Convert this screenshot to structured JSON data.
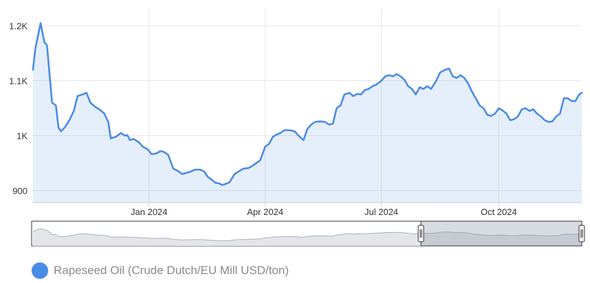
{
  "chart_data": {
    "type": "area",
    "title": "",
    "xlabel": "",
    "ylabel": "",
    "series": [
      {
        "name": "Rapeseed Oil (Crude Dutch/EU Mill USD/ton)",
        "color": "#4a8be6",
        "points": [
          [
            "2023-10-02",
            1120
          ],
          [
            "2023-10-04",
            1160
          ],
          [
            "2023-10-08",
            1205
          ],
          [
            "2023-10-11",
            1170
          ],
          [
            "2023-10-13",
            1165
          ],
          [
            "2023-10-17",
            1060
          ],
          [
            "2023-10-20",
            1055
          ],
          [
            "2023-10-22",
            1015
          ],
          [
            "2023-10-24",
            1008
          ],
          [
            "2023-10-27",
            1015
          ],
          [
            "2023-10-31",
            1030
          ],
          [
            "2023-11-03",
            1045
          ],
          [
            "2023-11-06",
            1072
          ],
          [
            "2023-11-10",
            1075
          ],
          [
            "2023-11-13",
            1078
          ],
          [
            "2023-11-16",
            1060
          ],
          [
            "2023-11-20",
            1052
          ],
          [
            "2023-11-23",
            1048
          ],
          [
            "2023-11-27",
            1040
          ],
          [
            "2023-11-30",
            1025
          ],
          [
            "2023-12-02",
            995
          ],
          [
            "2023-12-06",
            998
          ],
          [
            "2023-12-10",
            1005
          ],
          [
            "2023-12-13",
            1000
          ],
          [
            "2023-12-15",
            1001
          ],
          [
            "2023-12-17",
            992
          ],
          [
            "2023-12-20",
            994
          ],
          [
            "2023-12-24",
            988
          ],
          [
            "2023-12-27",
            980
          ],
          [
            "2023-12-31",
            975
          ],
          [
            "2024-01-03",
            966
          ],
          [
            "2024-01-07",
            968
          ],
          [
            "2024-01-10",
            972
          ],
          [
            "2024-01-13",
            970
          ],
          [
            "2024-01-16",
            965
          ],
          [
            "2024-01-20",
            940
          ],
          [
            "2024-01-24",
            935
          ],
          [
            "2024-01-27",
            930
          ],
          [
            "2024-01-30",
            932
          ],
          [
            "2024-02-02",
            934
          ],
          [
            "2024-02-06",
            938
          ],
          [
            "2024-02-10",
            938
          ],
          [
            "2024-02-13",
            935
          ],
          [
            "2024-02-16",
            925
          ],
          [
            "2024-02-19",
            920
          ],
          [
            "2024-02-22",
            914
          ],
          [
            "2024-02-25",
            913
          ],
          [
            "2024-02-27",
            910
          ],
          [
            "2024-03-01",
            912
          ],
          [
            "2024-03-04",
            915
          ],
          [
            "2024-03-08",
            930
          ],
          [
            "2024-03-12",
            936
          ],
          [
            "2024-03-15",
            940
          ],
          [
            "2024-03-19",
            941
          ],
          [
            "2024-03-22",
            945
          ],
          [
            "2024-03-25",
            950
          ],
          [
            "2024-03-28",
            955
          ],
          [
            "2024-04-01",
            980
          ],
          [
            "2024-04-04",
            985
          ],
          [
            "2024-04-07",
            998
          ],
          [
            "2024-04-10",
            1002
          ],
          [
            "2024-04-13",
            1005
          ],
          [
            "2024-04-16",
            1010
          ],
          [
            "2024-04-20",
            1010
          ],
          [
            "2024-04-24",
            1008
          ],
          [
            "2024-04-28",
            998
          ],
          [
            "2024-05-01",
            992
          ],
          [
            "2024-05-04",
            1012
          ],
          [
            "2024-05-07",
            1020
          ],
          [
            "2024-05-10",
            1025
          ],
          [
            "2024-05-14",
            1026
          ],
          [
            "2024-05-18",
            1025
          ],
          [
            "2024-05-21",
            1020
          ],
          [
            "2024-05-24",
            1022
          ],
          [
            "2024-05-27",
            1050
          ],
          [
            "2024-05-30",
            1055
          ],
          [
            "2024-06-02",
            1075
          ],
          [
            "2024-06-06",
            1078
          ],
          [
            "2024-06-09",
            1072
          ],
          [
            "2024-06-12",
            1076
          ],
          [
            "2024-06-15",
            1075
          ],
          [
            "2024-06-18",
            1083
          ],
          [
            "2024-06-21",
            1085
          ],
          [
            "2024-06-24",
            1090
          ],
          [
            "2024-06-27",
            1093
          ],
          [
            "2024-07-01",
            1100
          ],
          [
            "2024-07-04",
            1108
          ],
          [
            "2024-07-07",
            1110
          ],
          [
            "2024-07-10",
            1108
          ],
          [
            "2024-07-13",
            1112
          ],
          [
            "2024-07-16",
            1108
          ],
          [
            "2024-07-19",
            1102
          ],
          [
            "2024-07-22",
            1090
          ],
          [
            "2024-07-25",
            1085
          ],
          [
            "2024-07-28",
            1075
          ],
          [
            "2024-07-31",
            1088
          ],
          [
            "2024-08-03",
            1085
          ],
          [
            "2024-08-06",
            1090
          ],
          [
            "2024-08-09",
            1085
          ],
          [
            "2024-08-13",
            1100
          ],
          [
            "2024-08-16",
            1115
          ],
          [
            "2024-08-20",
            1120
          ],
          [
            "2024-08-23",
            1122
          ],
          [
            "2024-08-26",
            1108
          ],
          [
            "2024-08-29",
            1105
          ],
          [
            "2024-09-01",
            1110
          ],
          [
            "2024-09-04",
            1105
          ],
          [
            "2024-09-07",
            1095
          ],
          [
            "2024-09-10",
            1080
          ],
          [
            "2024-09-13",
            1068
          ],
          [
            "2024-09-16",
            1055
          ],
          [
            "2024-09-19",
            1050
          ],
          [
            "2024-09-22",
            1038
          ],
          [
            "2024-09-25",
            1036
          ],
          [
            "2024-09-28",
            1040
          ],
          [
            "2024-10-01",
            1050
          ],
          [
            "2024-10-04",
            1046
          ],
          [
            "2024-10-07",
            1040
          ],
          [
            "2024-10-10",
            1028
          ],
          [
            "2024-10-13",
            1030
          ],
          [
            "2024-10-16",
            1035
          ],
          [
            "2024-10-19",
            1048
          ],
          [
            "2024-10-22",
            1050
          ],
          [
            "2024-10-25",
            1045
          ],
          [
            "2024-10-28",
            1048
          ],
          [
            "2024-10-31",
            1040
          ],
          [
            "2024-11-03",
            1035
          ],
          [
            "2024-11-06",
            1028
          ],
          [
            "2024-11-09",
            1025
          ],
          [
            "2024-11-12",
            1026
          ],
          [
            "2024-11-15",
            1035
          ],
          [
            "2024-11-18",
            1040
          ],
          [
            "2024-11-21",
            1068
          ],
          [
            "2024-11-24",
            1068
          ],
          [
            "2024-11-27",
            1063
          ],
          [
            "2024-11-30",
            1063
          ],
          [
            "2024-12-03",
            1075
          ],
          [
            "2024-12-05",
            1078
          ]
        ]
      }
    ],
    "x_ticks": [
      {
        "date": "2024-01-01",
        "label": "Jan 2024"
      },
      {
        "date": "2024-04-01",
        "label": "Apr 2024"
      },
      {
        "date": "2024-07-01",
        "label": "Jul 2024"
      },
      {
        "date": "2024-10-01",
        "label": "Oct 2024"
      }
    ],
    "y_ticks": [
      {
        "value": 900,
        "label": "900"
      },
      {
        "value": 1000,
        "label": "1K"
      },
      {
        "value": 1100,
        "label": "1.1K"
      },
      {
        "value": 1200,
        "label": "1.2K"
      }
    ],
    "xlim": [
      "2023-10-01",
      "2024-12-05"
    ],
    "ylim": [
      878,
      1232
    ],
    "grid": true,
    "legend_position": "bottom-left",
    "navigator": {
      "selection_start": "2024-08-01",
      "selection_end": "2024-12-05",
      "series_color": "#aab0ba"
    }
  }
}
